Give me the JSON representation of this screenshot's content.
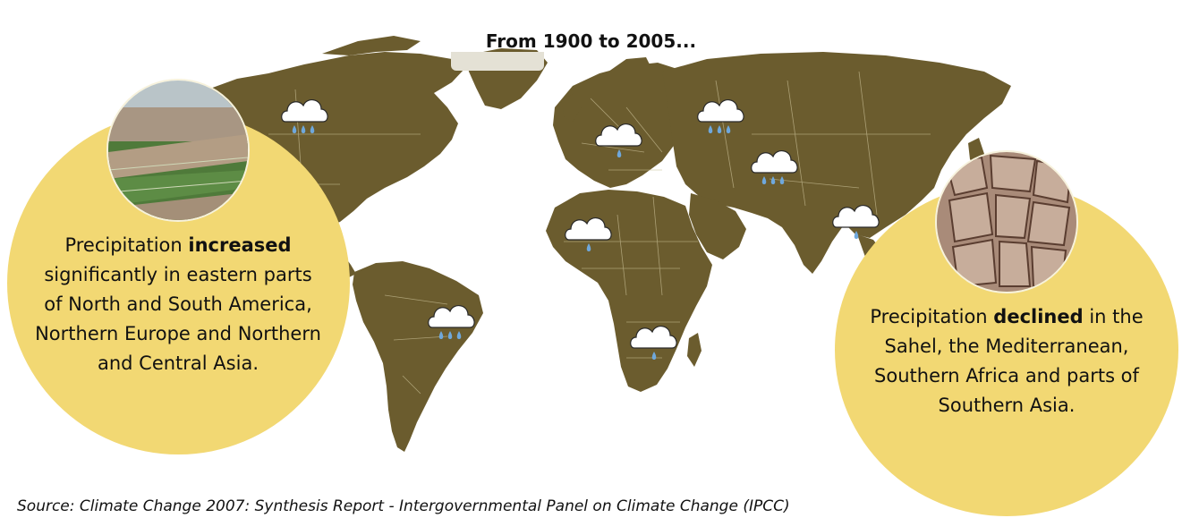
{
  "title": "From 1900 to 2005...",
  "colors": {
    "land": "#6b5c2e",
    "border": "#c8bd94",
    "callout_fill": "#f2d873",
    "cloud": "#ffffff",
    "rain_drop": "#6fa8dc"
  },
  "increase_callout": {
    "prefix": "Precipitation ",
    "keyword": "increased",
    "body": "significantly in eastern parts of North and South America, Northern Europe and Northern and Central Asia.",
    "photo": "flooded-farmland-photo"
  },
  "decline_callout": {
    "prefix": "Precipitation ",
    "keyword": "declined",
    "body": "in the Sahel, the Mediterranean, Southern Africa and parts of Southern Asia.",
    "photo": "cracked-dry-soil-photo"
  },
  "markers": [
    {
      "region": "eastern North America",
      "trend": "increase",
      "icon": "heavy-rain-cloud-icon"
    },
    {
      "region": "eastern South America",
      "trend": "increase",
      "icon": "heavy-rain-cloud-icon"
    },
    {
      "region": "Northern Europe",
      "trend": "increase",
      "icon": "heavy-rain-cloud-icon"
    },
    {
      "region": "Northern Asia",
      "trend": "increase",
      "icon": "heavy-rain-cloud-icon"
    },
    {
      "region": "Central Asia",
      "trend": "increase",
      "icon": "heavy-rain-cloud-icon"
    },
    {
      "region": "Mediterranean",
      "trend": "decline",
      "icon": "light-rain-cloud-icon"
    },
    {
      "region": "Sahel",
      "trend": "decline",
      "icon": "light-rain-cloud-icon"
    },
    {
      "region": "Southern Africa",
      "trend": "decline",
      "icon": "light-rain-cloud-icon"
    },
    {
      "region": "Southern Asia",
      "trend": "decline",
      "icon": "light-rain-cloud-icon"
    }
  ],
  "source": "Source: Climate Change 2007: Synthesis Report - Intergovernmental Panel on Climate Change (IPCC)"
}
